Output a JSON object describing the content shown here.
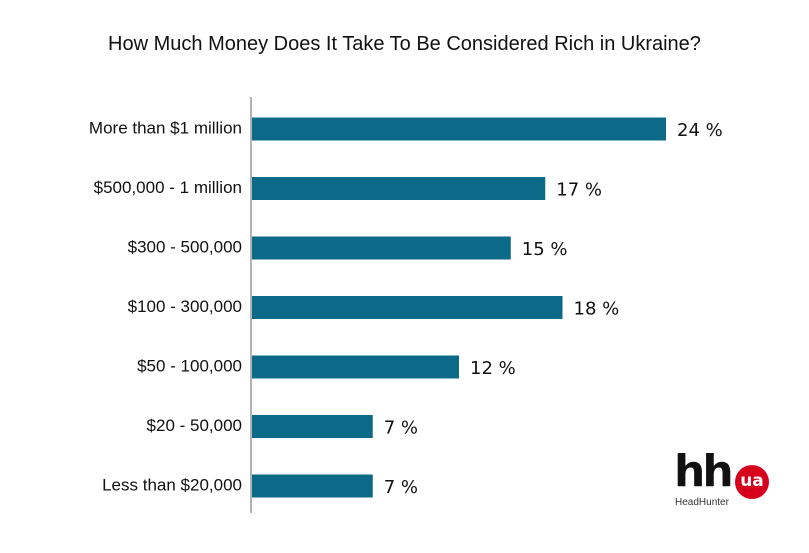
{
  "chart_data": {
    "type": "bar",
    "orientation": "horizontal",
    "title": "How Much Money Does It Take To Be Considered Rich in Ukraine?",
    "categories": [
      "More than $1 million",
      "$500,000 - 1 million",
      "$300 - 500,000",
      "$100 - 300,000",
      "$50 - 100,000",
      "$20 - 50,000",
      "Less than $20,000"
    ],
    "values": [
      24,
      17,
      15,
      18,
      12,
      7,
      7
    ],
    "value_labels": [
      "24 %",
      "17 %",
      "15 %",
      "18 %",
      "12 %",
      "7 %",
      "7 %"
    ],
    "xlim": [
      0,
      24
    ],
    "bar_color": "#0b6a88",
    "grid": false,
    "legend": "none"
  },
  "logo": {
    "main": "hh",
    "badge": "ua",
    "subtitle": "HeadHunter",
    "badge_color": "#d6001c"
  }
}
